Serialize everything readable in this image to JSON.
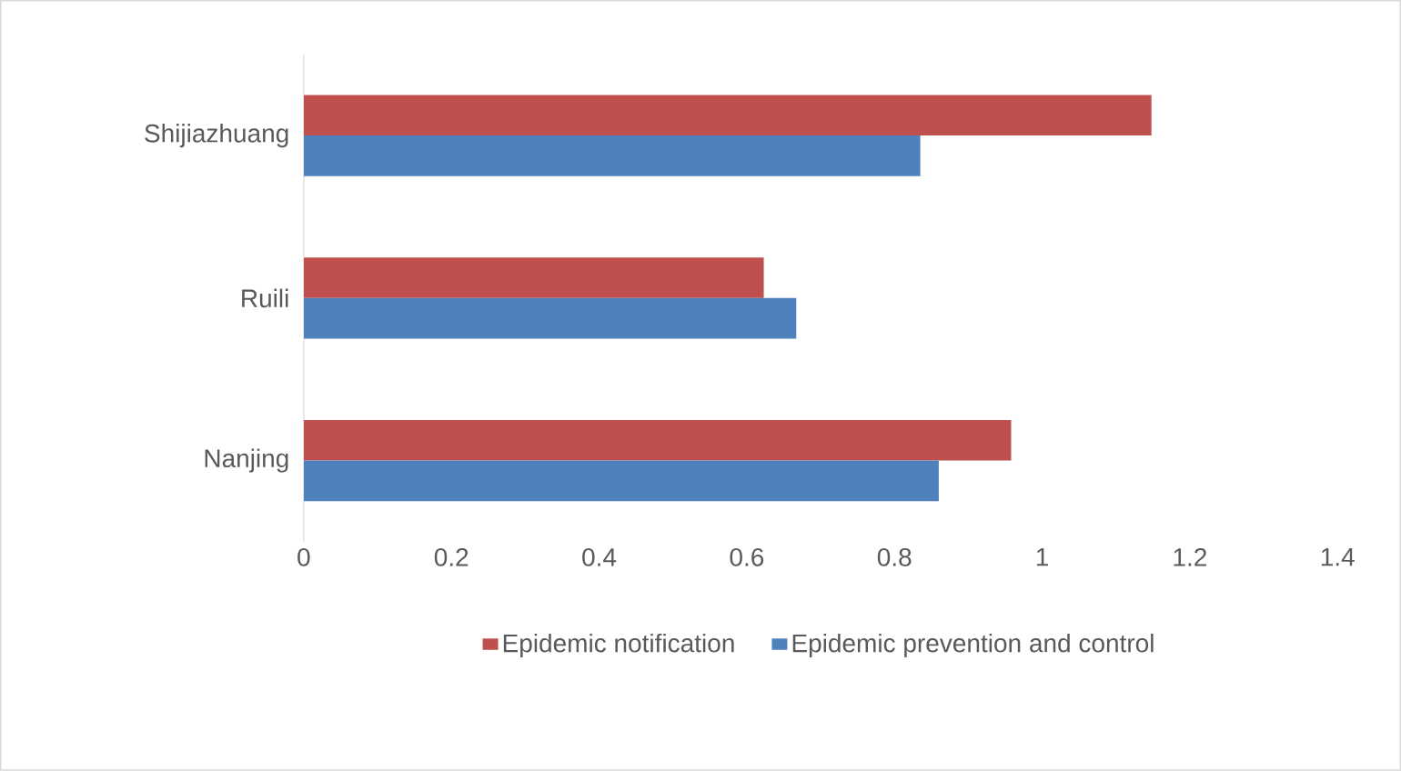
{
  "chart_data": {
    "type": "bar",
    "orientation": "horizontal",
    "categories": [
      "Shijiazhuang",
      "Ruili",
      "Nanjing"
    ],
    "series": [
      {
        "name": "Epidemic notification",
        "color": "#c0504d",
        "values": [
          1.148,
          0.623,
          0.958
        ]
      },
      {
        "name": "Epidemic prevention and control",
        "color": "#4f81bd",
        "values": [
          0.835,
          0.667,
          0.86
        ]
      }
    ],
    "xlim": [
      0,
      1.4
    ],
    "xticks": [
      0,
      0.2,
      0.4,
      0.6,
      0.8,
      1,
      1.2,
      1.4
    ],
    "grid": false,
    "legend": "bottom"
  }
}
